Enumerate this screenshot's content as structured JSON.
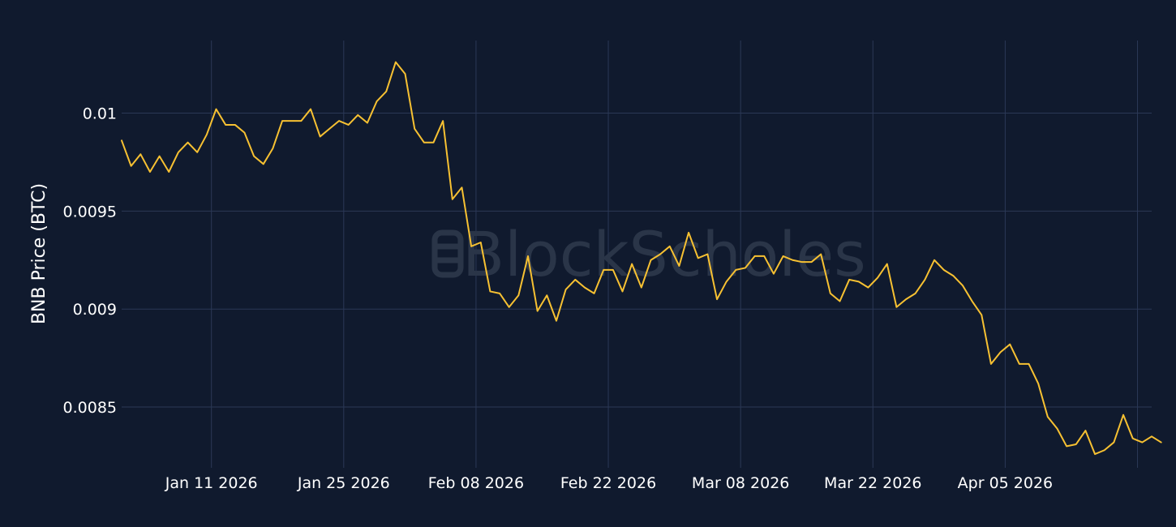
{
  "watermark": "BlockScholes",
  "chart_data": {
    "type": "line",
    "ylabel": "BNB Price (BTC)",
    "xlabel": "",
    "title": "",
    "x_ticks": [
      {
        "date": "2026-01-11",
        "label": "Jan 11 2026"
      },
      {
        "date": "2026-01-25",
        "label": "Jan 25 2026"
      },
      {
        "date": "2026-02-08",
        "label": "Feb 08 2026"
      },
      {
        "date": "2026-02-22",
        "label": "Feb 22 2026"
      },
      {
        "date": "2026-03-08",
        "label": "Mar 08 2026"
      },
      {
        "date": "2026-03-22",
        "label": "Mar 22 2026"
      },
      {
        "date": "2026-04-05",
        "label": "Apr 05 2026"
      }
    ],
    "extra_gridlines": [
      "2026-04-19"
    ],
    "y_ticks": [
      {
        "value": 0.0085,
        "label": "0.0085"
      },
      {
        "value": 0.009,
        "label": "0.009"
      },
      {
        "value": 0.0095,
        "label": "0.0095"
      },
      {
        "value": 0.01,
        "label": "0.01"
      }
    ],
    "xlim": [
      "2026-01-01T12:00",
      "2026-04-20T12:00"
    ],
    "ylim": [
      0.00819,
      0.01037
    ],
    "grid": true,
    "colors": {
      "background": "#101a2e",
      "grid": "#2b3856",
      "line": "#f7c132",
      "text": "#ffffff"
    },
    "series": [
      {
        "start": "2026-01-01T12:00",
        "step_hours": 24,
        "values": [
          0.00986,
          0.00973,
          0.00979,
          0.0097,
          0.00978,
          0.0097,
          0.0098,
          0.00985,
          0.0098,
          0.00989,
          0.01002,
          0.00994,
          0.00994,
          0.0099,
          0.00978,
          0.00974,
          0.00982,
          0.00996,
          0.00996,
          0.00996,
          0.01002,
          0.00988,
          0.00992,
          0.00996,
          0.00994,
          0.00999,
          0.00995,
          0.01006,
          0.01011,
          0.01026,
          0.0102,
          0.00992,
          0.00985,
          0.00985,
          0.00996,
          0.00956,
          0.00962,
          0.00932,
          0.00934,
          0.00909,
          0.00908,
          0.00901,
          0.00907,
          0.00927,
          0.00899,
          0.00907,
          0.00894,
          0.0091,
          0.00915,
          0.00911,
          0.00908,
          0.0092,
          0.0092,
          0.00909,
          0.00923,
          0.00911,
          0.00925,
          0.00928,
          0.00932,
          0.00922,
          0.00939,
          0.00926,
          0.00928,
          0.00905,
          0.00914,
          0.0092,
          0.00921,
          0.00927,
          0.00927,
          0.00918,
          0.00927,
          0.00925,
          0.00924,
          0.00924,
          0.00928,
          0.00908,
          0.00904,
          0.00915,
          0.00914,
          0.00911,
          0.00916,
          0.00923,
          0.00901,
          0.00905,
          0.00908,
          0.00915,
          0.00925,
          0.0092,
          0.00917,
          0.00912,
          0.00904,
          0.00897,
          0.00872,
          0.00878,
          0.00882,
          0.00872,
          0.00872,
          0.00862,
          0.00845,
          0.00839,
          0.0083,
          0.00831,
          0.00838,
          0.00826,
          0.00828,
          0.00832,
          0.00846,
          0.00834,
          0.00832,
          0.00835,
          0.00832
        ]
      }
    ]
  }
}
